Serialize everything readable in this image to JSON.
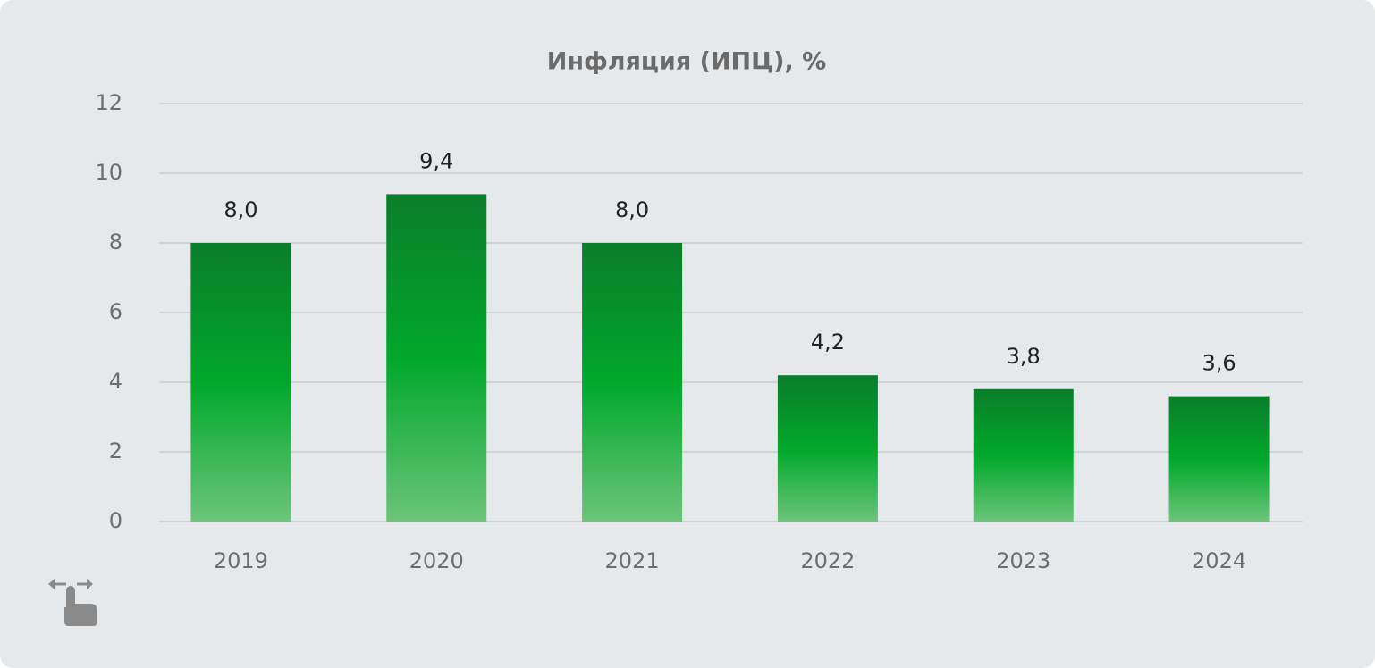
{
  "chart_data": {
    "type": "bar",
    "title": "Инфляция (ИПЦ), %",
    "categories": [
      "2019",
      "2020",
      "2021",
      "2022",
      "2023",
      "2024"
    ],
    "values": [
      8.0,
      9.4,
      8.0,
      4.2,
      3.8,
      3.6
    ],
    "value_labels": [
      "8,0",
      "9,4",
      "8,0",
      "4,2",
      "3,8",
      "3,6"
    ],
    "color": "#00a82a",
    "ylim": [
      0,
      12
    ],
    "yticks": [
      0,
      2,
      4,
      6,
      8,
      10,
      12
    ],
    "grid": true
  }
}
